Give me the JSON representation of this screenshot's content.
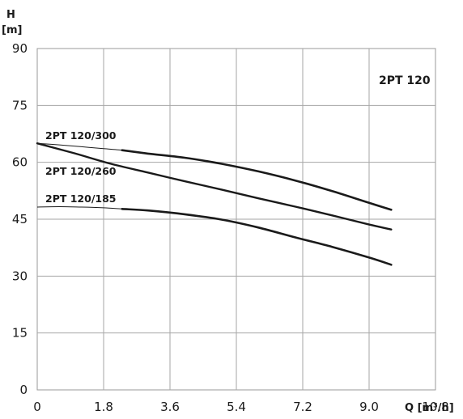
{
  "chart_data": {
    "type": "line",
    "title": "2PT 120",
    "xlabel": "Q [m³/h]",
    "ylabel_top": "H",
    "ylabel_unit": "[m]",
    "xlim": [
      0,
      10.8
    ],
    "ylim": [
      0,
      90
    ],
    "x_ticks": [
      "0",
      "1.8",
      "3.6",
      "5.4",
      "7.2",
      "9.0",
      "10.8"
    ],
    "y_ticks": [
      "0",
      "15",
      "30",
      "45",
      "60",
      "75",
      "90"
    ],
    "x_tick_values": [
      0,
      1.8,
      3.6,
      5.4,
      7.2,
      9.0,
      10.8
    ],
    "y_tick_values": [
      0,
      15,
      30,
      45,
      60,
      75,
      90
    ],
    "grid": true,
    "series": [
      {
        "name": "2PT 120/300",
        "thin_x": [
          0,
          0.6,
          1.2,
          1.8,
          2.3
        ],
        "thin_y": [
          65.0,
          64.6,
          64.1,
          63.6,
          63.2
        ],
        "x": [
          2.3,
          3.0,
          4.0,
          5.0,
          6.0,
          7.0,
          8.0,
          9.0,
          9.6
        ],
        "y": [
          63.2,
          62.3,
          61.2,
          59.6,
          57.6,
          55.2,
          52.4,
          49.3,
          47.5
        ]
      },
      {
        "name": "2PT 120/260",
        "x": [
          0,
          1.0,
          2.0,
          3.0,
          4.0,
          5.0,
          6.0,
          7.0,
          8.0,
          9.0,
          9.6
        ],
        "y": [
          65.0,
          62.4,
          59.6,
          57.3,
          55.0,
          52.8,
          50.5,
          48.3,
          46.0,
          43.6,
          42.3
        ]
      },
      {
        "name": "2PT 120/185",
        "thin_x": [
          0,
          0.6,
          1.2,
          1.8,
          2.3
        ],
        "thin_y": [
          48.2,
          48.3,
          48.2,
          48.0,
          47.7
        ],
        "x": [
          2.3,
          3.0,
          4.0,
          5.0,
          6.0,
          7.0,
          8.0,
          9.0,
          9.6
        ],
        "y": [
          47.7,
          47.3,
          46.3,
          44.9,
          42.8,
          40.2,
          37.7,
          34.9,
          33.0
        ]
      }
    ]
  }
}
